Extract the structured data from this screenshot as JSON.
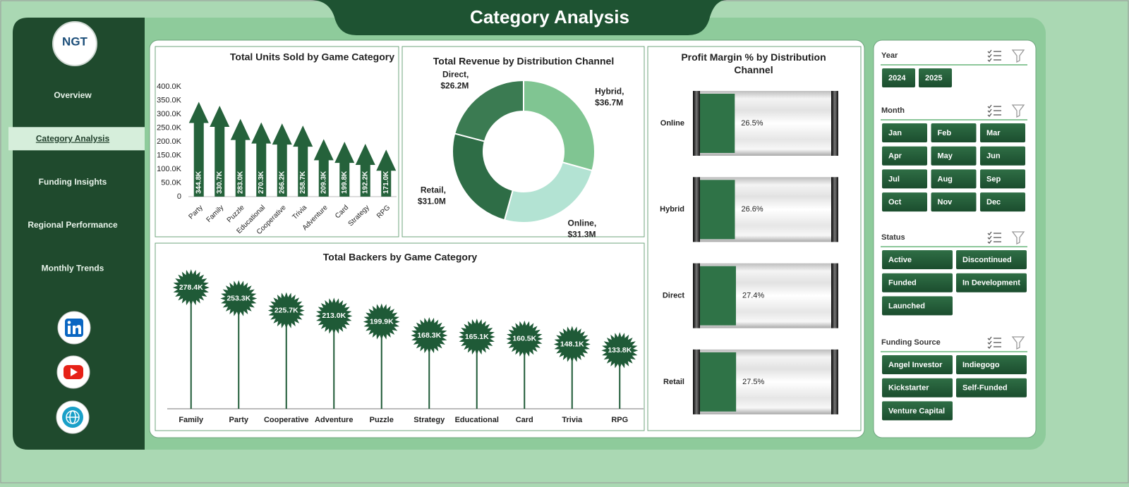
{
  "header": {
    "title": "Category Analysis",
    "logo": "NGT"
  },
  "nav": [
    {
      "label": "Overview"
    },
    {
      "label": "Category Analysis",
      "selected": true
    },
    {
      "label": "Funding Insights"
    },
    {
      "label": "Regional Performance"
    },
    {
      "label": "Monthly Trends"
    }
  ],
  "chart_data": [
    {
      "type": "bar",
      "title": "Total Units Sold by Game Category",
      "categories": [
        "Party",
        "Family",
        "Puzzle",
        "Educational",
        "Cooperative",
        "Trivia",
        "Adventure",
        "Card",
        "Strategy",
        "RPG"
      ],
      "values": [
        344800,
        330700,
        283000,
        270300,
        266200,
        258700,
        209300,
        199800,
        192200,
        171000
      ],
      "value_labels": [
        "344.8K",
        "330.7K",
        "283.0K",
        "270.3K",
        "266.2K",
        "258.7K",
        "209.3K",
        "199.8K",
        "192.2K",
        "171.0K"
      ],
      "color": "#25623b",
      "ylim": [
        0,
        400000
      ],
      "yticks": [
        0,
        {
          "value": 50000,
          "label": "50.0K"
        },
        {
          "value": 100000,
          "label": "100.0K"
        },
        {
          "value": 150000,
          "label": "150.0K"
        },
        {
          "value": 200000,
          "label": "200.0K"
        },
        {
          "value": 250000,
          "label": "250.0K"
        },
        {
          "value": 300000,
          "label": "300.0K"
        },
        {
          "value": 350000,
          "label": "350.0K"
        },
        {
          "value": 400000,
          "label": "400.0K"
        }
      ],
      "grid": false
    },
    {
      "type": "pie",
      "title": "Total Revenue  by Distribution Channel",
      "donut": true,
      "categories": [
        "Hybrid,",
        "Online,",
        "Retail,",
        "Direct,"
      ],
      "values": [
        36.7,
        31.3,
        31.0,
        26.2
      ],
      "value_labels": [
        "$36.7M",
        "$31.3M",
        "$31.0M",
        "$26.2M"
      ],
      "colors": [
        "#80c592",
        "#b3e3d3",
        "#2e6d46",
        "#3b7b52"
      ]
    },
    {
      "type": "bar",
      "orientation": "horizontal",
      "title": "Profit Margin % by Distribution Channel",
      "categories": [
        "Online",
        "Hybrid",
        "Direct",
        "Retail"
      ],
      "values": [
        26.5,
        26.6,
        27.4,
        27.5
      ],
      "value_labels": [
        "26.5%",
        "26.6%",
        "27.4%",
        "27.5%"
      ],
      "color": "#2f7347",
      "xlim": [
        0,
        100
      ]
    },
    {
      "type": "lollipop",
      "title": "Total Backers by Game Category",
      "categories": [
        "Family",
        "Party",
        "Cooperative",
        "Adventure",
        "Puzzle",
        "Strategy",
        "Educational",
        "Card",
        "Trivia",
        "RPG"
      ],
      "values": [
        278400,
        253300,
        225700,
        213000,
        199900,
        168300,
        165100,
        160500,
        148100,
        133800
      ],
      "value_labels": [
        "278.4K",
        "253.3K",
        "225.7K",
        "213.0K",
        "199.9K",
        "168.3K",
        "165.1K",
        "160.5K",
        "148.1K",
        "133.8K"
      ],
      "color": "#1f5a37"
    }
  ],
  "slicers": [
    {
      "title": "Year",
      "columns": 4,
      "items": [
        "2024",
        "2025"
      ]
    },
    {
      "title": "Month",
      "columns": 3,
      "items": [
        "Jan",
        "Feb",
        "Mar",
        "Apr",
        "May",
        "Jun",
        "Jul",
        "Aug",
        "Sep",
        "Oct",
        "Nov",
        "Dec"
      ]
    },
    {
      "title": "Status",
      "columns": 2,
      "items": [
        "Active",
        "Discontinued",
        "Funded",
        "In Development",
        "Launched"
      ]
    },
    {
      "title": "Funding Source",
      "columns": 2,
      "items": [
        "Angel Investor",
        "Indiegogo",
        "Kickstarter",
        "Self-Funded",
        "Venture Capital"
      ]
    }
  ]
}
